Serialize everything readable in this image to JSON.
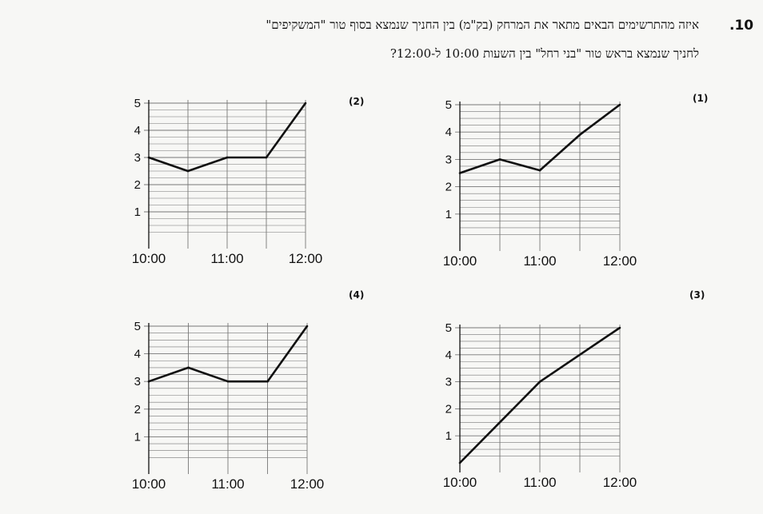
{
  "question": {
    "number": ".10",
    "line1": "איזה מהתרשימים הבאים מתאר את המרחק (בק\"מ) בין החניך שנמצא בסוף טור \"המשקיפים\"",
    "line2": "לחניך שנמצא בראש טור \"בני רחל\" בין השעות 10:00 ל-12:00?"
  },
  "colors": {
    "line": "#111111",
    "grid": "#777777",
    "background": "#f7f7f5"
  },
  "chart_data": [
    {
      "label": "(1)",
      "type": "line",
      "x": [
        "10:00",
        "10:30",
        "11:00",
        "11:30",
        "12:00"
      ],
      "y": [
        2.5,
        3.0,
        2.6,
        3.9,
        5.0
      ],
      "x_ticks": [
        "10:00",
        "11:00",
        "12:00"
      ],
      "y_ticks": [
        1,
        2,
        3,
        4,
        5
      ],
      "ylim": [
        0,
        5
      ],
      "grid": true
    },
    {
      "label": "(2)",
      "type": "line",
      "x": [
        "10:00",
        "10:30",
        "11:00",
        "11:30",
        "12:00"
      ],
      "y": [
        3.0,
        2.5,
        3.0,
        3.0,
        5.0
      ],
      "x_ticks": [
        "10:00",
        "11:00",
        "12:00"
      ],
      "y_ticks": [
        1,
        2,
        3,
        4,
        5
      ],
      "ylim": [
        0,
        5
      ],
      "grid": true
    },
    {
      "label": "(3)",
      "type": "line",
      "x": [
        "10:00",
        "11:00",
        "12:00"
      ],
      "y": [
        0.0,
        3.0,
        5.0
      ],
      "x_ticks": [
        "10:00",
        "11:00",
        "12:00"
      ],
      "y_ticks": [
        1,
        2,
        3,
        4,
        5
      ],
      "ylim": [
        0,
        5
      ],
      "grid": true
    },
    {
      "label": "(4)",
      "type": "line",
      "x": [
        "10:00",
        "10:30",
        "11:00",
        "11:30",
        "12:00"
      ],
      "y": [
        3.0,
        3.5,
        3.0,
        3.0,
        5.0
      ],
      "x_ticks": [
        "10:00",
        "11:00",
        "12:00"
      ],
      "y_ticks": [
        1,
        2,
        3,
        4,
        5
      ],
      "ylim": [
        0,
        5
      ],
      "grid": true
    }
  ]
}
